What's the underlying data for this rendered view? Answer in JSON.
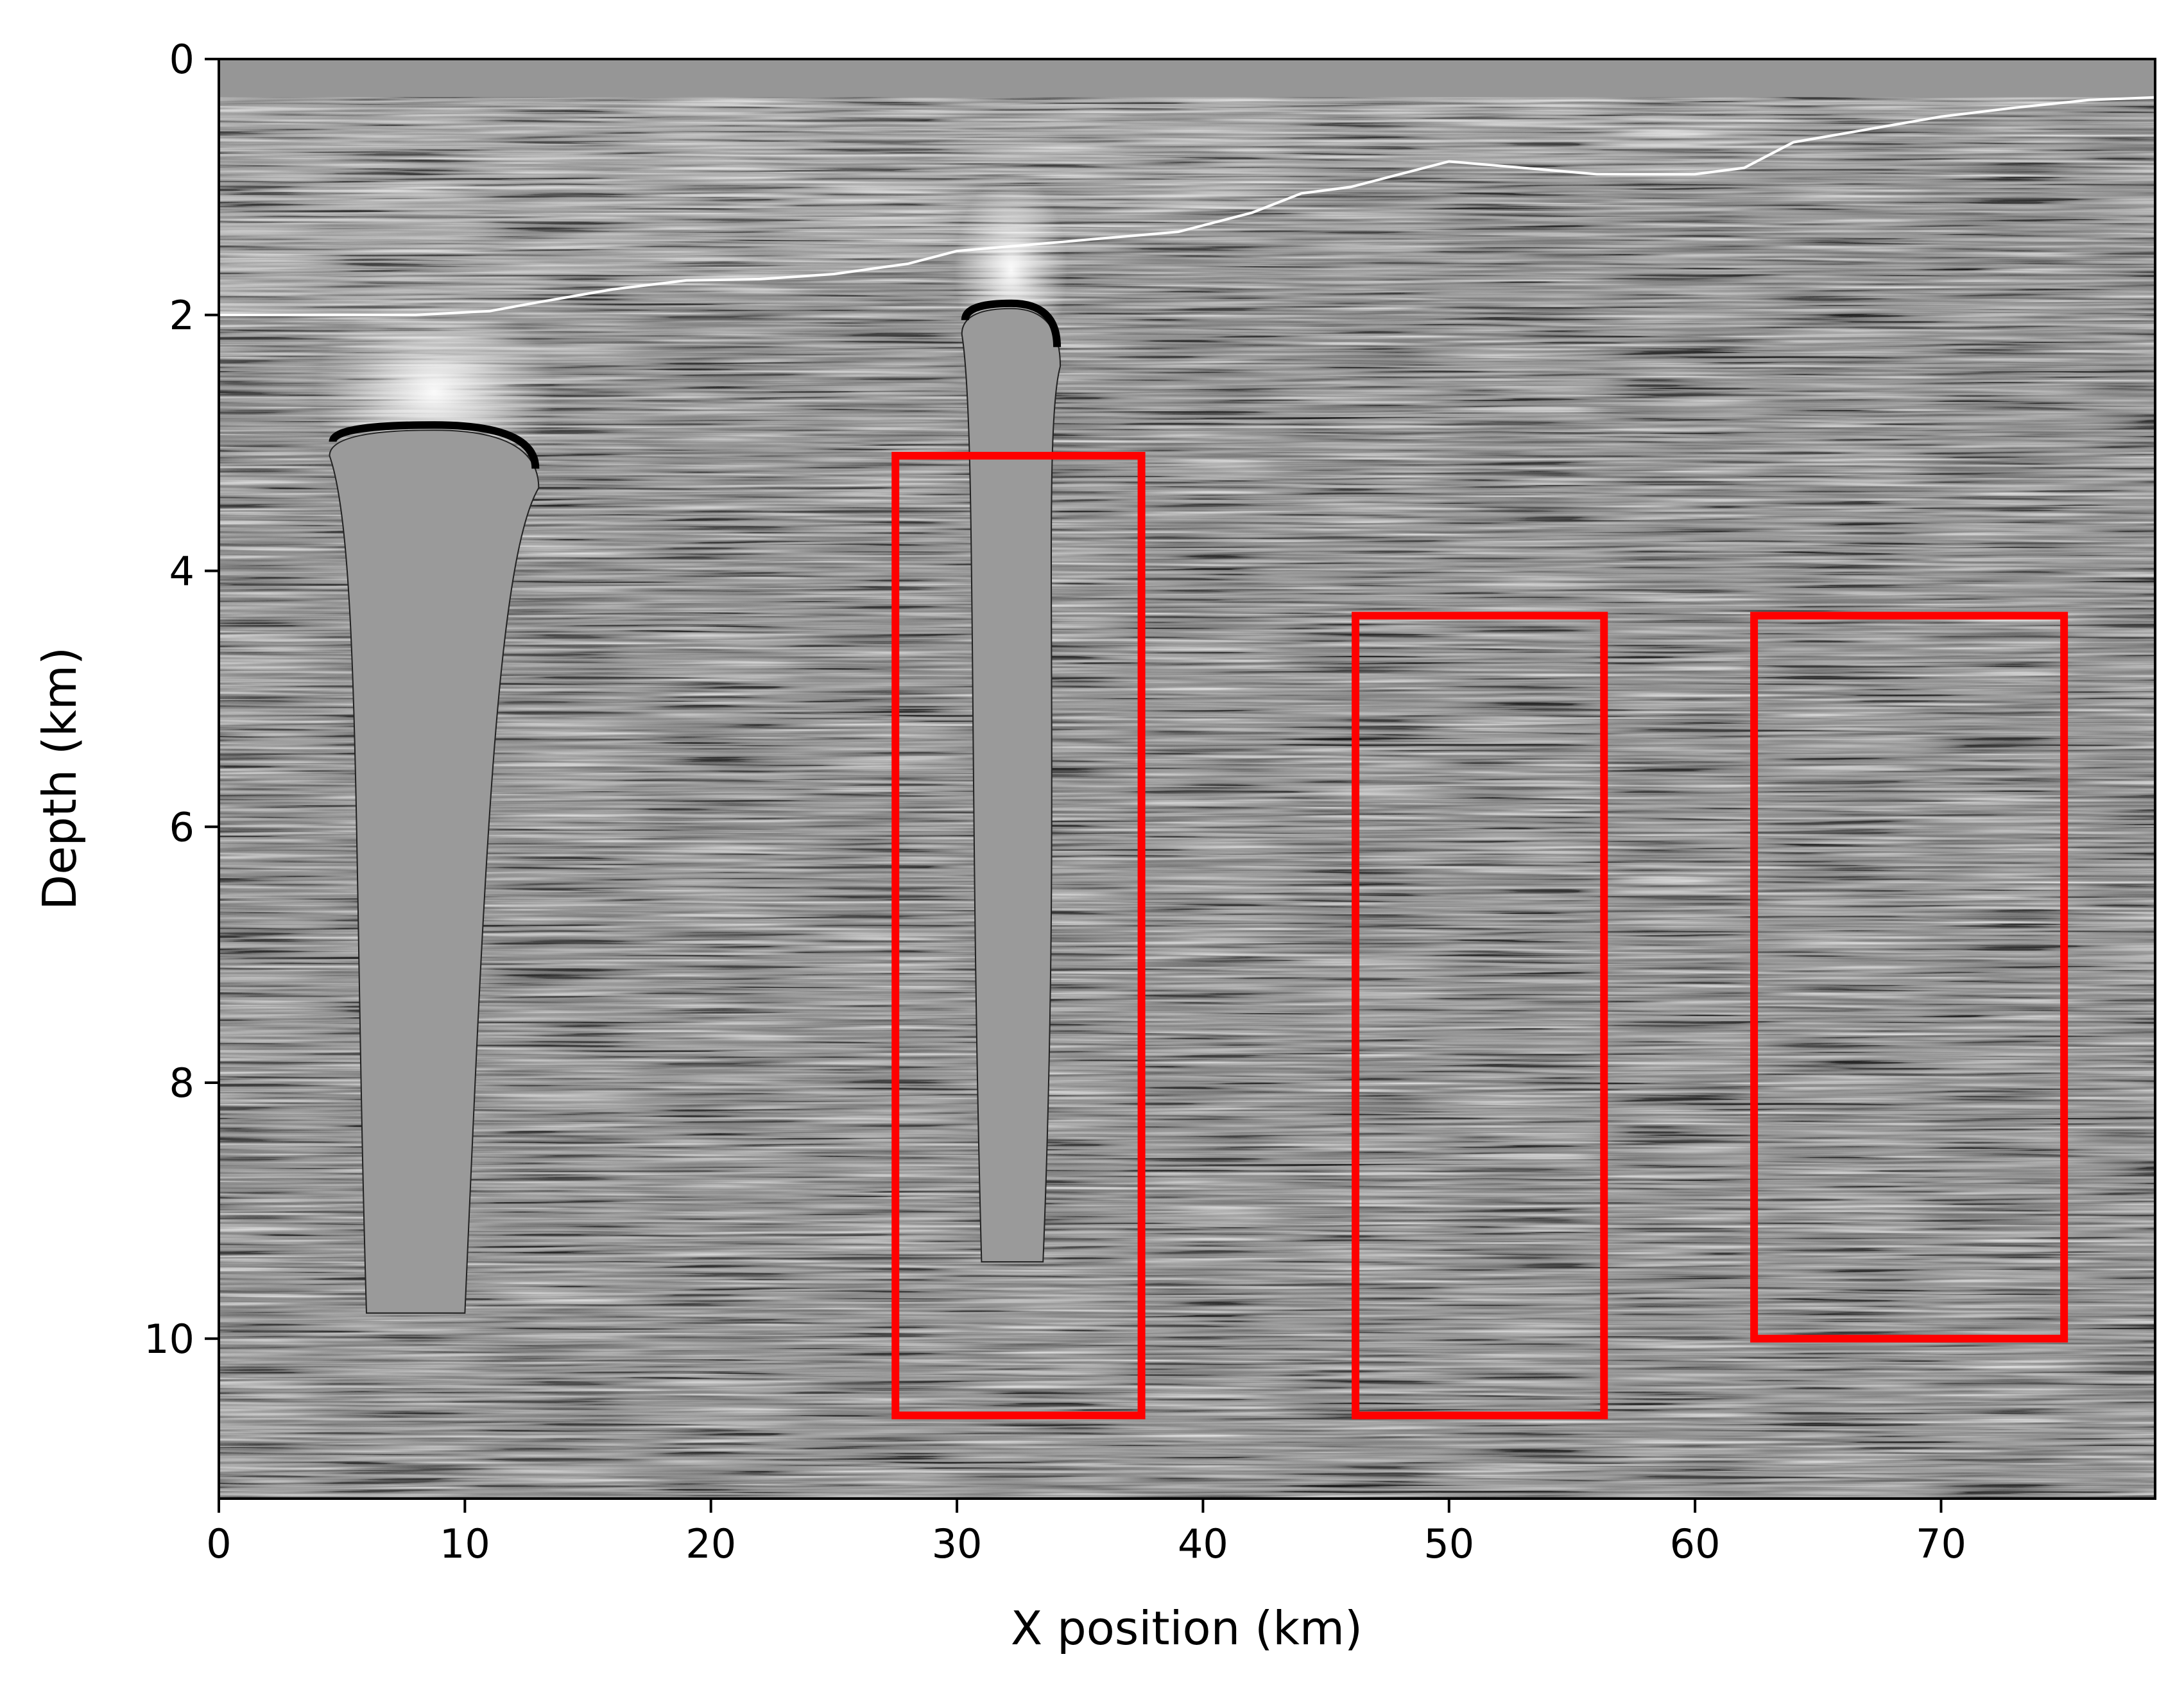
{
  "chart_data": {
    "type": "heatmap",
    "title": "",
    "xlabel": "X position (km)",
    "ylabel": "Depth (km)",
    "xlim": [
      0,
      78.7
    ],
    "ylim": [
      0,
      11.25
    ],
    "y_inverted": true,
    "colormap": "gray",
    "grid": false,
    "x_ticks": [
      0,
      10,
      20,
      30,
      40,
      50,
      60,
      70
    ],
    "x_tick_labels": [
      "0",
      "10",
      "20",
      "30",
      "40",
      "50",
      "60",
      "70"
    ],
    "y_ticks": [
      0,
      2,
      4,
      6,
      8,
      10
    ],
    "y_tick_labels": [
      "0",
      "2",
      "4",
      "6",
      "8",
      "10"
    ],
    "seafloor": {
      "x": [
        0,
        5,
        8,
        11,
        13,
        16,
        19,
        22,
        25,
        28,
        30,
        33,
        36,
        39,
        42,
        44,
        46,
        50,
        53,
        56,
        60,
        62,
        64,
        67,
        70,
        73,
        76,
        78.7
      ],
      "depth": [
        2.0,
        2.0,
        2.0,
        1.97,
        1.9,
        1.8,
        1.73,
        1.72,
        1.68,
        1.6,
        1.5,
        1.45,
        1.4,
        1.35,
        1.2,
        1.05,
        1.0,
        0.8,
        0.85,
        0.9,
        0.9,
        0.85,
        0.65,
        0.55,
        0.45,
        0.38,
        0.32,
        0.3
      ]
    },
    "salt_bodies": [
      {
        "top_depth": 2.9,
        "x_top": [
          4.5,
          13.0
        ],
        "base_depth": 9.8,
        "x_base": [
          6.0,
          10.0
        ]
      },
      {
        "top_depth": 1.95,
        "x_top": [
          30.2,
          34.2
        ],
        "base_depth": 9.4,
        "x_base": [
          31.0,
          33.5
        ]
      }
    ],
    "highlight_boxes": [
      {
        "color": "#ff0000",
        "x": [
          27.5,
          37.5
        ],
        "depth": [
          3.1,
          10.6
        ]
      },
      {
        "color": "#ff0000",
        "x": [
          46.2,
          56.3
        ],
        "depth": [
          4.35,
          10.6
        ]
      },
      {
        "color": "#ff0000",
        "x": [
          62.4,
          75.0
        ],
        "depth": [
          4.35,
          10.0
        ]
      }
    ]
  }
}
